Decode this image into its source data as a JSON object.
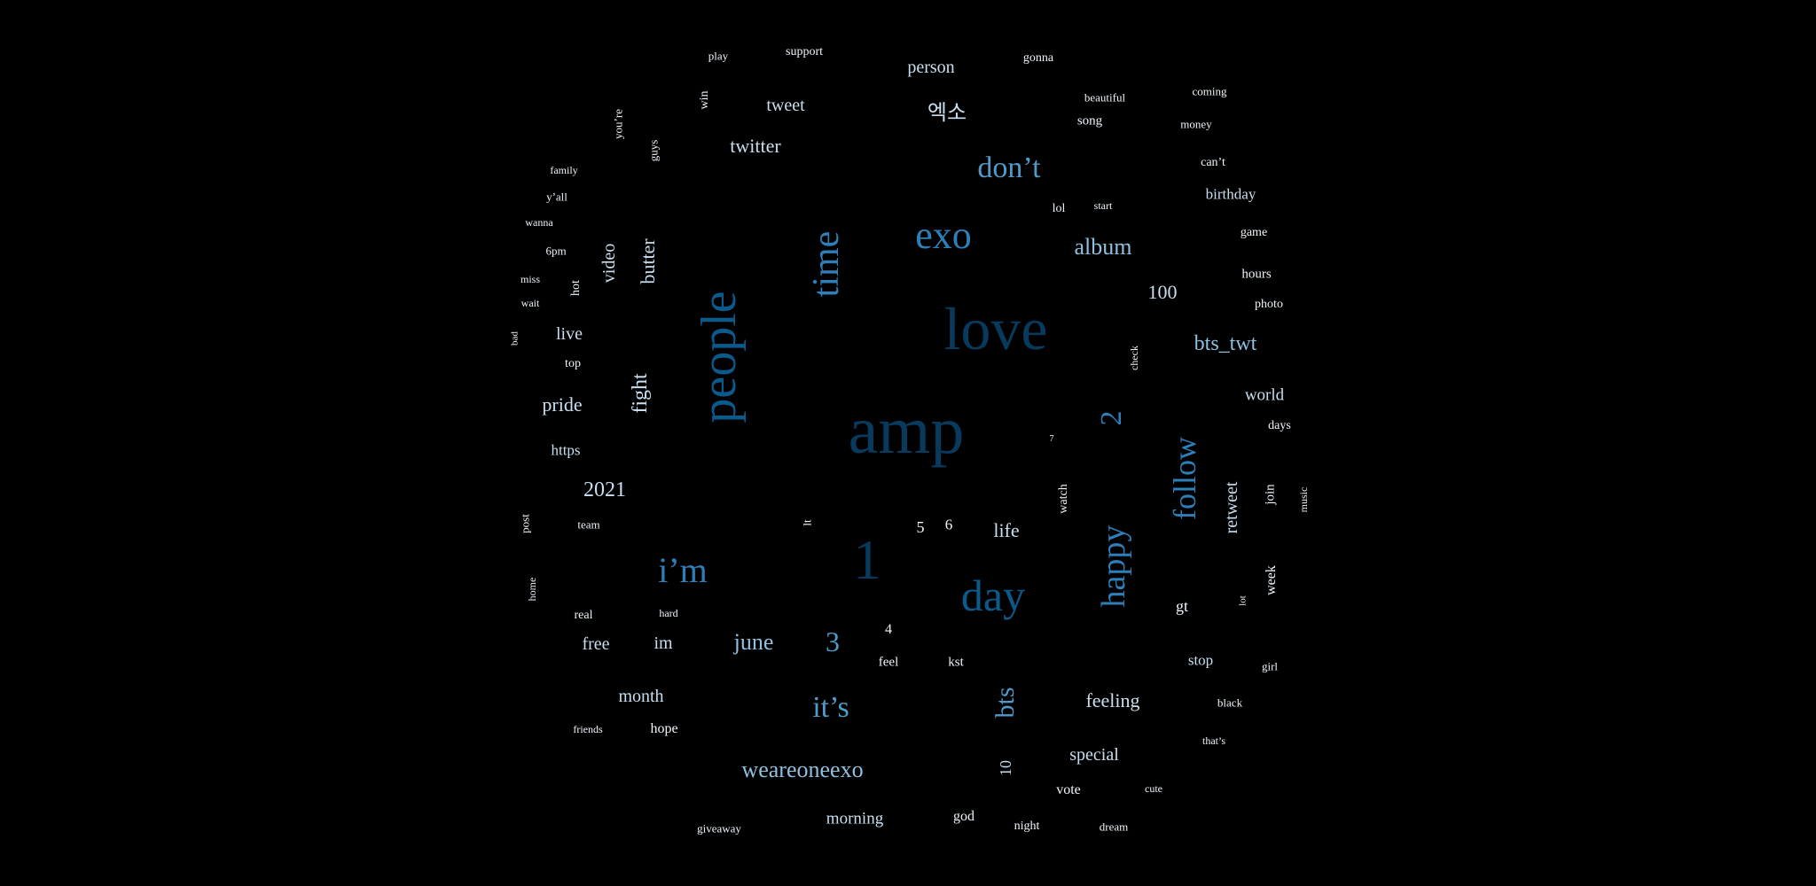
{
  "word_cloud": [
    {
      "text": "amp",
      "tone": "c1"
    },
    {
      "text": "love",
      "tone": "c1"
    },
    {
      "text": "1",
      "tone": "c1"
    },
    {
      "text": "people",
      "tone": "c2"
    },
    {
      "text": "day",
      "tone": "c2"
    },
    {
      "text": "exo",
      "tone": "c3"
    },
    {
      "text": "time",
      "tone": "c3"
    },
    {
      "text": "i’m",
      "tone": "c3"
    },
    {
      "text": "happy",
      "tone": "c3"
    },
    {
      "text": "follow",
      "tone": "c3"
    },
    {
      "text": "2",
      "tone": "c3"
    },
    {
      "text": "don’t",
      "tone": "c4"
    },
    {
      "text": "it’s",
      "tone": "c4"
    },
    {
      "text": "bts",
      "tone": "c4"
    },
    {
      "text": "3",
      "tone": "c4"
    },
    {
      "text": "album",
      "tone": "c5"
    },
    {
      "text": "bts_twt",
      "tone": "c5"
    },
    {
      "text": "weareoneexo",
      "tone": "c5"
    },
    {
      "text": "june",
      "tone": "c5"
    },
    {
      "text": "엑소",
      "tone": "c6"
    },
    {
      "text": "twitter",
      "tone": "c6"
    },
    {
      "text": "tweet",
      "tone": "c6"
    },
    {
      "text": "person",
      "tone": "c6"
    },
    {
      "text": "100",
      "tone": "c6"
    },
    {
      "text": "butter",
      "tone": "c6"
    },
    {
      "text": "video",
      "tone": "c6"
    },
    {
      "text": "fight",
      "tone": "c6"
    },
    {
      "text": "pride",
      "tone": "c6"
    },
    {
      "text": "2021",
      "tone": "c6"
    },
    {
      "text": "life",
      "tone": "c6"
    },
    {
      "text": "feeling",
      "tone": "c6"
    },
    {
      "text": "special",
      "tone": "c6"
    },
    {
      "text": "month",
      "tone": "c6"
    },
    {
      "text": "retweet",
      "tone": "c6"
    },
    {
      "text": "world",
      "tone": "c6"
    },
    {
      "text": "im",
      "tone": "c6"
    },
    {
      "text": "free",
      "tone": "c6"
    },
    {
      "text": "live",
      "tone": "c6"
    },
    {
      "text": "morning",
      "tone": "c6"
    },
    {
      "text": "10",
      "tone": "c6"
    },
    {
      "text": "birthday",
      "tone": "c6"
    },
    {
      "text": "stop",
      "tone": "c6"
    },
    {
      "text": "https",
      "tone": "c6"
    },
    {
      "text": "hope",
      "tone": "c7"
    },
    {
      "text": "support",
      "tone": "c7"
    },
    {
      "text": "play",
      "tone": "c7"
    },
    {
      "text": "gonna",
      "tone": "c7"
    },
    {
      "text": "beautiful",
      "tone": "c7"
    },
    {
      "text": "coming",
      "tone": "c7"
    },
    {
      "text": "song",
      "tone": "c7"
    },
    {
      "text": "money",
      "tone": "c7"
    },
    {
      "text": "win",
      "tone": "c7"
    },
    {
      "text": "you’re",
      "tone": "c7"
    },
    {
      "text": "guys",
      "tone": "c7"
    },
    {
      "text": "family",
      "tone": "c7"
    },
    {
      "text": "y’all",
      "tone": "c7"
    },
    {
      "text": "wanna",
      "tone": "c7"
    },
    {
      "text": "6pm",
      "tone": "c7"
    },
    {
      "text": "miss",
      "tone": "c7"
    },
    {
      "text": "wait",
      "tone": "c7"
    },
    {
      "text": "hot",
      "tone": "c7"
    },
    {
      "text": "bad",
      "tone": "c7"
    },
    {
      "text": "top",
      "tone": "c7"
    },
    {
      "text": "lol",
      "tone": "c7"
    },
    {
      "text": "start",
      "tone": "c7"
    },
    {
      "text": "can’t",
      "tone": "c7"
    },
    {
      "text": "game",
      "tone": "c7"
    },
    {
      "text": "hours",
      "tone": "c7"
    },
    {
      "text": "photo",
      "tone": "c7"
    },
    {
      "text": "check",
      "tone": "c7"
    },
    {
      "text": "days",
      "tone": "c7"
    },
    {
      "text": "7",
      "tone": "c7"
    },
    {
      "text": "watch",
      "tone": "c7"
    },
    {
      "text": "join",
      "tone": "c7"
    },
    {
      "text": "music",
      "tone": "c7"
    },
    {
      "text": "post",
      "tone": "c7"
    },
    {
      "text": "team",
      "tone": "c7"
    },
    {
      "text": "lt",
      "tone": "c7"
    },
    {
      "text": "5",
      "tone": "c7"
    },
    {
      "text": "6",
      "tone": "c7"
    },
    {
      "text": "home",
      "tone": "c7"
    },
    {
      "text": "week",
      "tone": "c7"
    },
    {
      "text": "lot",
      "tone": "c7"
    },
    {
      "text": "gt",
      "tone": "c7"
    },
    {
      "text": "real",
      "tone": "c7"
    },
    {
      "text": "hard",
      "tone": "c7"
    },
    {
      "text": "4",
      "tone": "c7"
    },
    {
      "text": "feel",
      "tone": "c7"
    },
    {
      "text": "kst",
      "tone": "c7"
    },
    {
      "text": "girl",
      "tone": "c7"
    },
    {
      "text": "black",
      "tone": "c7"
    },
    {
      "text": "friends",
      "tone": "c7"
    },
    {
      "text": "that’s",
      "tone": "c7"
    },
    {
      "text": "vote",
      "tone": "c7"
    },
    {
      "text": "cute",
      "tone": "c7"
    },
    {
      "text": "giveaway",
      "tone": "c7"
    },
    {
      "text": "god",
      "tone": "c7"
    },
    {
      "text": "night",
      "tone": "c7"
    },
    {
      "text": "dream",
      "tone": "c7"
    }
  ]
}
